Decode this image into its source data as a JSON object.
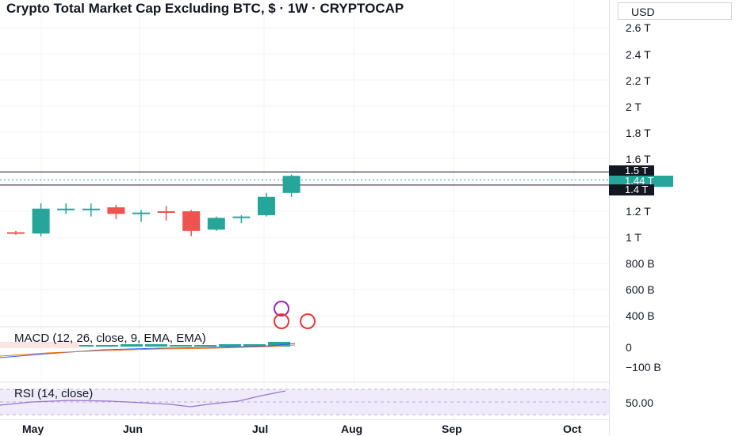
{
  "header": {
    "title": "Crypto Total Market Cap Excluding BTC, $ · 1W · CRYPTOCAP"
  },
  "price_axis": {
    "currency": "USD",
    "ticks": [
      "2.6 T",
      "2.4 T",
      "2.2 T",
      "2 T",
      "1.8 T",
      "1.6 T",
      "1.2 T",
      "1 T",
      "800 B",
      "600 B",
      "400 B"
    ],
    "tags": {
      "upper": "1.5 T",
      "current": "1.44 T",
      "lower": "1.4 T"
    }
  },
  "macd": {
    "title": "MACD (12, 26, close, 9, EMA, EMA)",
    "ticks": [
      "0",
      "−100 B"
    ]
  },
  "rsi": {
    "title": "RSI (14, close)",
    "ticks": [
      "50.00"
    ]
  },
  "time_axis": {
    "labels": [
      "May",
      "Jun",
      "Jul",
      "Aug",
      "Sep",
      "Oct"
    ]
  },
  "colors": {
    "up": "#26a69a",
    "down": "#ef5350",
    "grid": "#f0f3fa",
    "rsi_band": "#f0ebfa",
    "rsi_line": "#9575cd"
  },
  "chart_data": {
    "type": "candlestick",
    "interval": "1W",
    "series": [
      {
        "x": "Apr 22",
        "open": 1.04,
        "high": 1.05,
        "low": 1.02,
        "close": 1.03
      },
      {
        "x": "Apr 29",
        "open": 1.03,
        "high": 1.26,
        "low": 1.01,
        "close": 1.22
      },
      {
        "x": "May 6",
        "open": 1.22,
        "high": 1.26,
        "low": 1.18,
        "close": 1.22
      },
      {
        "x": "May 13",
        "open": 1.22,
        "high": 1.26,
        "low": 1.16,
        "close": 1.22
      },
      {
        "x": "May 20",
        "open": 1.23,
        "high": 1.25,
        "low": 1.14,
        "close": 1.18
      },
      {
        "x": "May 27",
        "open": 1.19,
        "high": 1.21,
        "low": 1.12,
        "close": 1.19
      },
      {
        "x": "Jun 3",
        "open": 1.2,
        "high": 1.24,
        "low": 1.13,
        "close": 1.19
      },
      {
        "x": "Jun 10",
        "open": 1.2,
        "high": 1.21,
        "low": 1.01,
        "close": 1.05
      },
      {
        "x": "Jun 17",
        "open": 1.06,
        "high": 1.16,
        "low": 1.05,
        "close": 1.15
      },
      {
        "x": "Jun 24",
        "open": 1.15,
        "high": 1.17,
        "low": 1.11,
        "close": 1.16
      },
      {
        "x": "Jul 1",
        "open": 1.17,
        "high": 1.34,
        "low": 1.16,
        "close": 1.31
      },
      {
        "x": "Jul 8",
        "open": 1.34,
        "high": 1.48,
        "low": 1.31,
        "close": 1.47
      }
    ],
    "horizontal_lines": [
      1.5,
      1.4
    ],
    "current_price": 1.44
  }
}
